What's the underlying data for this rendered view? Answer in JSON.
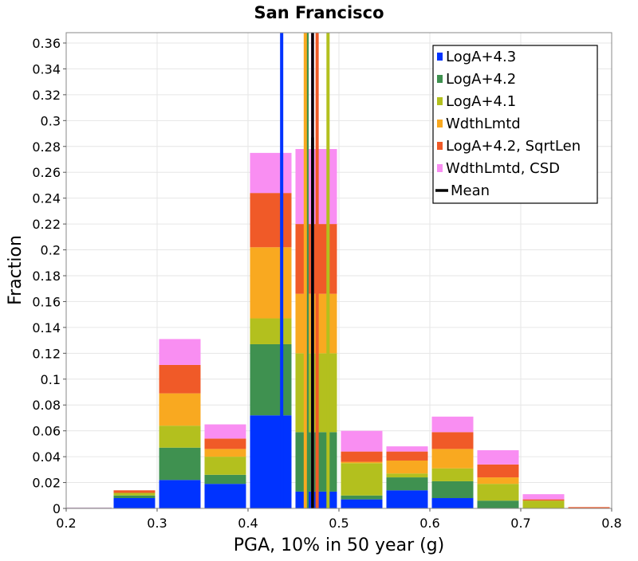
{
  "chart_data": {
    "type": "bar",
    "stacked": true,
    "title": "San Francisco",
    "xlabel": "PGA, 10% in 50 year (g)",
    "ylabel": "Fraction",
    "xlim": [
      0.2,
      0.8
    ],
    "ylim": [
      0,
      0.368
    ],
    "xticks": [
      "0.2",
      "0.3",
      "0.4",
      "0.5",
      "0.6",
      "0.7",
      "0.8"
    ],
    "yticks": [
      "0",
      "0.02",
      "0.04",
      "0.06",
      "0.08",
      "0.1",
      "0.12",
      "0.14",
      "0.16",
      "0.18",
      "0.2",
      "0.22",
      "0.24",
      "0.26",
      "0.28",
      "0.3",
      "0.32",
      "0.34",
      "0.36"
    ],
    "grid": true,
    "legend_position": "top-right",
    "bin_width": 0.05,
    "bins": [
      0.225,
      0.275,
      0.325,
      0.375,
      0.425,
      0.475,
      0.525,
      0.575,
      0.625,
      0.675,
      0.725,
      0.775
    ],
    "series": [
      {
        "name": "LogA+4.3",
        "color": "#0033ff",
        "values": [
          0,
          0.008,
          0.022,
          0.019,
          0.072,
          0.013,
          0.007,
          0.014,
          0.008,
          0,
          0,
          0
        ]
      },
      {
        "name": "LogA+4.2",
        "color": "#3f9150",
        "values": [
          0,
          0.002,
          0.025,
          0.007,
          0.055,
          0.046,
          0.003,
          0.01,
          0.013,
          0.006,
          0,
          0
        ]
      },
      {
        "name": "LogA+4.1",
        "color": "#b3c01e",
        "values": [
          0,
          0.002,
          0.017,
          0.014,
          0.02,
          0.061,
          0.025,
          0.003,
          0.01,
          0.013,
          0.006,
          0
        ]
      },
      {
        "name": "WdthLmtd",
        "color": "#f9a920",
        "values": [
          0,
          0,
          0.025,
          0.006,
          0.055,
          0.046,
          0.001,
          0.01,
          0.015,
          0.005,
          0,
          0
        ]
      },
      {
        "name": "LogA+4.2, SqrtLen",
        "color": "#f05a28",
        "values": [
          0,
          0.002,
          0.022,
          0.008,
          0.042,
          0.054,
          0.008,
          0.007,
          0.013,
          0.01,
          0.001,
          0.001
        ]
      },
      {
        "name": "WdthLmtd, CSD",
        "color": "#f98ef2",
        "values": [
          0,
          0,
          0.02,
          0.011,
          0.031,
          0.058,
          0.016,
          0.004,
          0.012,
          0.011,
          0.004,
          0
        ]
      }
    ],
    "mean_lines": [
      {
        "series": "LogA+4.3",
        "x": 0.437
      },
      {
        "series": "LogA+4.2",
        "x": 0.465
      },
      {
        "series": "LogA+4.1",
        "x": 0.488
      },
      {
        "series": "WdthLmtd",
        "x": 0.463
      },
      {
        "series": "LogA+4.2, SqrtLen",
        "x": 0.476
      },
      {
        "series": "WdthLmtd, CSD",
        "x": 0.471
      },
      {
        "series": "Mean",
        "x": 0.471
      }
    ],
    "legend": [
      {
        "label": "LogA+4.3",
        "color": "#0033ff",
        "marker": "square"
      },
      {
        "label": "LogA+4.2",
        "color": "#3f9150",
        "marker": "square"
      },
      {
        "label": "LogA+4.1",
        "color": "#b3c01e",
        "marker": "square"
      },
      {
        "label": "WdthLmtd",
        "color": "#f9a920",
        "marker": "square"
      },
      {
        "label": "LogA+4.2, SqrtLen",
        "color": "#f05a28",
        "marker": "square"
      },
      {
        "label": "WdthLmtd, CSD",
        "color": "#f98ef2",
        "marker": "square"
      },
      {
        "label": "Mean",
        "color": "#000000",
        "marker": "line"
      }
    ]
  }
}
